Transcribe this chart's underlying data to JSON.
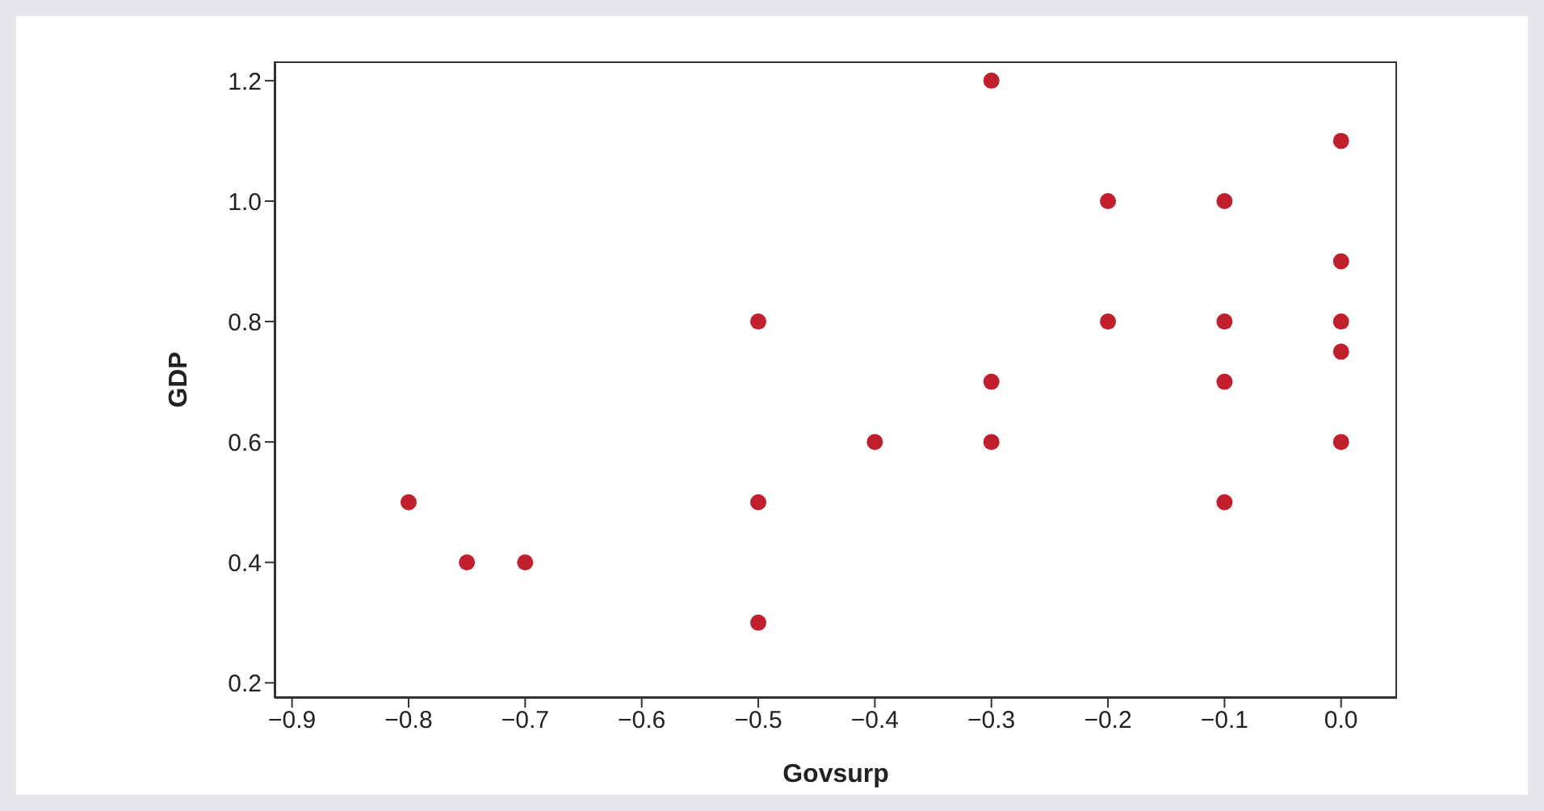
{
  "chart_data": {
    "type": "scatter",
    "xlabel": "Govsurp",
    "ylabel": "GDP",
    "x": [
      -0.8,
      -0.75,
      -0.7,
      -0.5,
      -0.5,
      -0.5,
      -0.4,
      -0.3,
      -0.3,
      -0.3,
      -0.2,
      -0.2,
      -0.1,
      -0.1,
      -0.1,
      -0.1,
      0,
      0,
      0,
      0,
      0
    ],
    "series": [
      {
        "color": "#c0202e",
        "values": [
          0.5,
          0.4,
          0.4,
          0.8,
          0.5,
          0.3,
          0.6,
          1.2,
          0.7,
          0.6,
          1.0,
          0.8,
          1.0,
          0.8,
          0.7,
          0.5,
          1.1,
          0.9,
          0.8,
          0.75,
          0.6
        ]
      }
    ],
    "xlim": [
      -0.915,
      0.048
    ],
    "ylim": [
      0.175,
      1.232
    ],
    "xticks": [
      {
        "value": -0.9,
        "label": "−0.9"
      },
      {
        "value": -0.8,
        "label": "−0.8"
      },
      {
        "value": -0.7,
        "label": "−0.7"
      },
      {
        "value": -0.6,
        "label": "−0.6"
      },
      {
        "value": -0.5,
        "label": "−0.5"
      },
      {
        "value": -0.4,
        "label": "−0.4"
      },
      {
        "value": -0.3,
        "label": "−0.3"
      },
      {
        "value": -0.2,
        "label": "−0.2"
      },
      {
        "value": -0.1,
        "label": "−0.1"
      },
      {
        "value": 0,
        "label": "0.0"
      }
    ],
    "yticks": [
      0.2,
      0.4,
      0.6,
      0.8,
      {
        "value": 1,
        "label": "1.0"
      },
      1.2
    ],
    "grid": false,
    "legend": false,
    "marker": "circle"
  }
}
